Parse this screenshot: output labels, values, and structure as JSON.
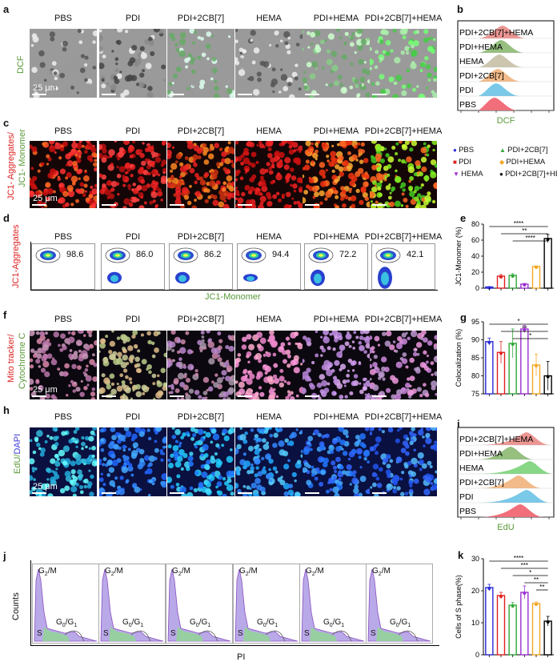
{
  "panels": {
    "a": "a",
    "b": "b",
    "c": "c",
    "d": "d",
    "e": "e",
    "f": "f",
    "g": "g",
    "h": "h",
    "i": "i",
    "j": "j",
    "k": "k"
  },
  "groups": [
    "PBS",
    "PDI",
    "PDI+2CB[7]",
    "HEMA",
    "PDI+HEMA",
    "PDI+2CB[7]+HEMA"
  ],
  "scale_bar": "25 μm",
  "row_labels": {
    "a": "DCF",
    "c_red": "JC1- Aggregates/",
    "c_green": "JC1- Monomer",
    "d_y": "JC1-Aggregates",
    "d_x": "JC1-Monomer",
    "f_red": "Mito tracker/",
    "f_green": "Cytochrome C",
    "h_green": "EdU/",
    "h_blue": "DAPI",
    "j_y": "Counts",
    "j_x": "PI"
  },
  "flow_b": {
    "xlabel": "DCF",
    "labels": [
      "PDI+2CB[7]+HEMA",
      "PDI+HEMA",
      "HEMA",
      "PDI+2CB[7]",
      "PDI",
      "PBS"
    ],
    "colors": [
      "#e98b87",
      "#8bb872",
      "#c7c0a6",
      "#f2b27c",
      "#6cc3e6",
      "#ef5f6d"
    ]
  },
  "flow_i": {
    "xlabel": "EdU",
    "labels": [
      "PDI+2CB[7]+HEMA",
      "PDI+HEMA",
      "HEMA",
      "PDI+2CB[7]",
      "PDI",
      "PBS"
    ],
    "colors": [
      "#e98b87",
      "#8bb872",
      "#7bd37a",
      "#f2b27c",
      "#6cc3e6",
      "#ef5f6d"
    ]
  },
  "flow_d_values": [
    "98.6",
    "86.0",
    "86.2",
    "94.4",
    "72.2",
    "42.1"
  ],
  "cycle_labels": {
    "g2m": "G",
    "g2m_sub": "2",
    "g2m_suf": "/M",
    "g0g1": "G",
    "g0g1_sub": "0",
    "g0g1_mid": "/G",
    "g0g1_sub2": "1",
    "s": "S"
  },
  "legend": [
    {
      "label": "PBS",
      "color": "#2a2ad8",
      "shape": "circle"
    },
    {
      "label": "PDI+2CB[7]",
      "color": "#2ea836",
      "shape": "triangle"
    },
    {
      "label": "PDI",
      "color": "#e02020",
      "shape": "square"
    },
    {
      "label": "PDI+HEMA",
      "color": "#f5a623",
      "shape": "diamond"
    },
    {
      "label": "HEMA",
      "color": "#9b2fd0",
      "shape": "triangle-down"
    },
    {
      "label": "PDI+2CB[7]+HEMA",
      "color": "#000000",
      "shape": "circle"
    }
  ],
  "chart_data": [
    {
      "panel": "e",
      "type": "bar",
      "categories": [
        "PBS",
        "PDI",
        "PDI+2CB[7]",
        "HEMA",
        "PDI+HEMA",
        "PDI+2CB[7]+HEMA"
      ],
      "values": [
        1.5,
        15,
        16,
        5,
        27,
        62
      ],
      "errors": [
        0.5,
        2,
        2,
        1,
        0.8,
        5
      ],
      "ylabel": "JC1-Monomer (%)",
      "ylim": [
        0,
        80
      ],
      "yticks": [
        0,
        20,
        40,
        60,
        80
      ],
      "colors": [
        "#2a2ad8",
        "#e02020",
        "#2ea836",
        "#9b2fd0",
        "#f5a623",
        "#000000"
      ],
      "significance": [
        "****",
        "**",
        "****"
      ]
    },
    {
      "panel": "g",
      "type": "bar",
      "categories": [
        "PBS",
        "PDI",
        "PDI+2CB[7]",
        "HEMA",
        "PDI+HEMA",
        "PDI+2CB[7]+HEMA"
      ],
      "values": [
        89.5,
        86.5,
        89,
        93,
        83,
        80
      ],
      "errors": [
        1,
        3,
        4,
        1,
        3,
        4
      ],
      "ylabel": "Colocalization (%)",
      "ylim": [
        75,
        95
      ],
      "yticks": [
        75,
        80,
        85,
        90,
        95
      ],
      "colors": [
        "#2a2ad8",
        "#e02020",
        "#2ea836",
        "#9b2fd0",
        "#f5a623",
        "#000000"
      ],
      "significance": [
        "*",
        "**",
        "*"
      ]
    },
    {
      "panel": "k",
      "type": "bar",
      "categories": [
        "PBS",
        "PDI",
        "PDI+2CB[7]",
        "HEMA",
        "PDI+HEMA",
        "PDI+2CB[7]+HEMA"
      ],
      "values": [
        21,
        18.5,
        15.5,
        19.5,
        16,
        10.5
      ],
      "errors": [
        1,
        1,
        0.8,
        2,
        0.5,
        1.5
      ],
      "ylabel": "Cells of S phase(%)",
      "ylim": [
        0,
        30
      ],
      "yticks": [
        0,
        10,
        20,
        30
      ],
      "colors": [
        "#2a2ad8",
        "#e02020",
        "#2ea836",
        "#9b2fd0",
        "#f5a623",
        "#000000"
      ],
      "significance": [
        "****",
        "***",
        "*",
        "**",
        "**"
      ]
    }
  ]
}
